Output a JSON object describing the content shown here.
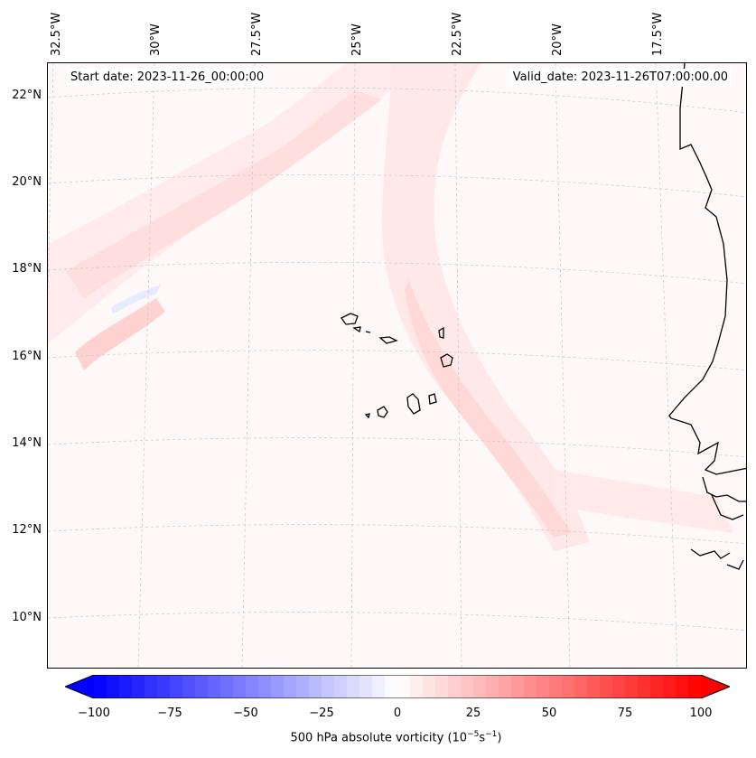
{
  "map": {
    "start_date": "Start date: 2023-11-26_00:00:00",
    "valid_date": "Valid_date: 2023-11-26T07:00:00.00",
    "lon_labels": [
      "32.5°W",
      "30°W",
      "27.5°W",
      "25°W",
      "22.5°W",
      "20°W",
      "17.5°W"
    ],
    "lat_labels": [
      "22°N",
      "20°N",
      "18°N",
      "16°N",
      "14°N",
      "12°N",
      "10°N"
    ],
    "variable": "500 hPa absolute vorticity",
    "units": "(10",
    "units_exp1": "−5",
    "units_mid": "s",
    "units_exp2": "−1",
    "units_close": ")"
  },
  "colorbar": {
    "ticks": [
      "−100",
      "−75",
      "−50",
      "−25",
      "0",
      "25",
      "50",
      "75",
      "100"
    ],
    "min_color": "#0000ff",
    "mid_color": "#ffffff",
    "max_color": "#ff0000",
    "levels": 48
  },
  "colors": {
    "land_line": "#000000",
    "grid": "#c8c8c8",
    "weak_positive": "#ffe6e6",
    "moderate_positive": "#ffd2d2",
    "weak_negative": "#eef2ff"
  }
}
